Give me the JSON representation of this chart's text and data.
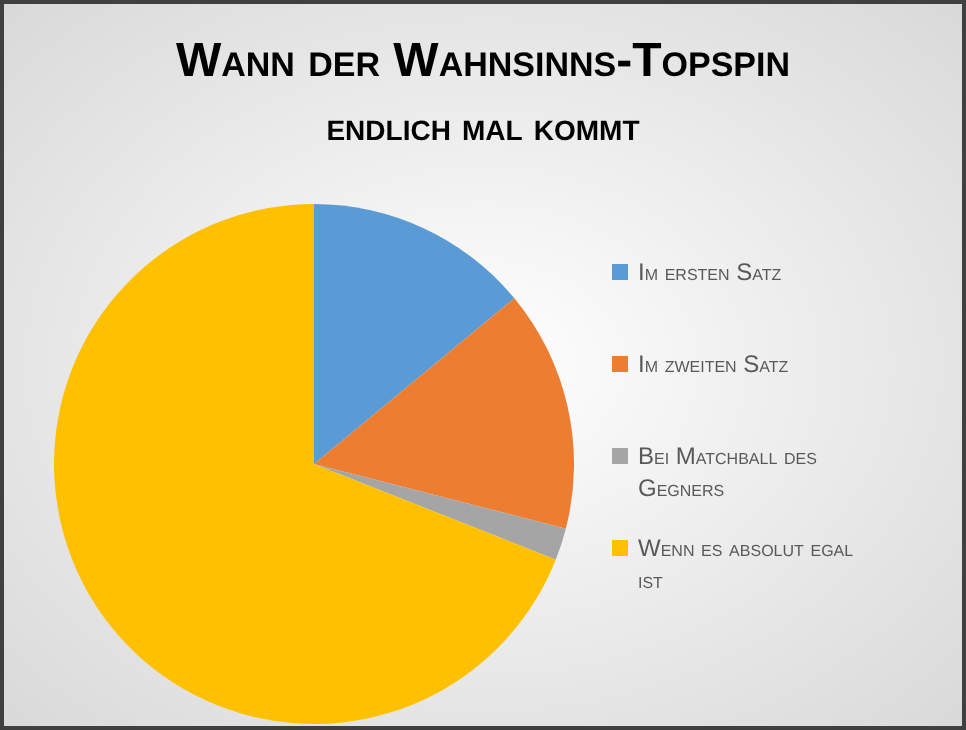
{
  "chart_data": {
    "type": "pie",
    "title": "Wann der Wahnsinns-Topspin endlich mal kommt",
    "categories": [
      "Im ersten Satz",
      "Im zweiten Satz",
      "Bei Matchball des Gegners",
      "Wenn es absolut egal ist"
    ],
    "values": [
      14,
      15,
      2,
      69
    ],
    "colors": [
      "#5b9bd5",
      "#ed7d31",
      "#a5a5a5",
      "#ffc000"
    ],
    "legend": "right"
  }
}
